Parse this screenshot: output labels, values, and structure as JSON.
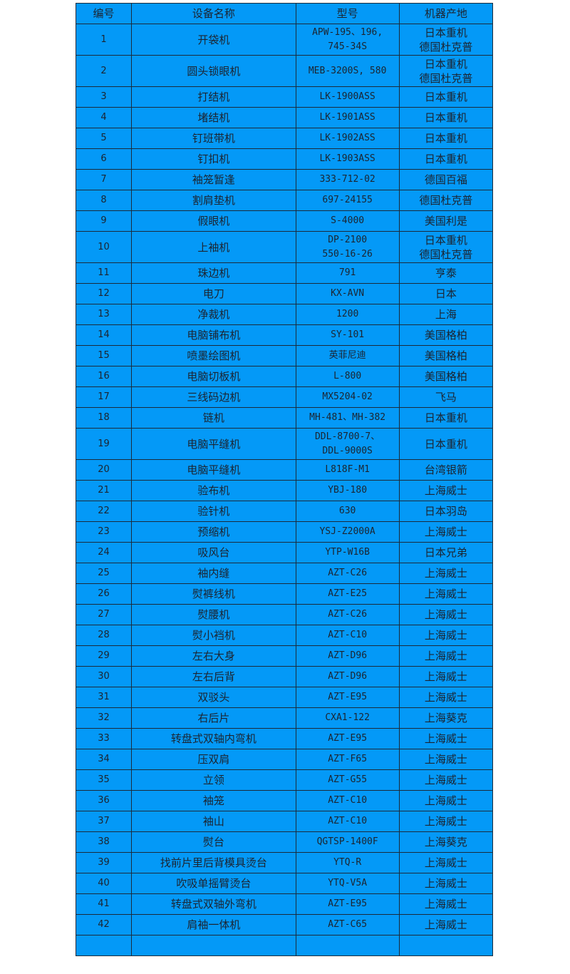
{
  "headers": [
    "编号",
    "设备名称",
    "型号",
    "机器产地"
  ],
  "rows": [
    {
      "no": "1",
      "name": "开袋机",
      "model": "APW-195、196,\n745-34S",
      "origin": "日本重机\n德国杜克普"
    },
    {
      "no": "2",
      "name": "圆头锁眼机",
      "model": "MEB-3200S, 580",
      "origin": "日本重机\n德国杜克普"
    },
    {
      "no": "3",
      "name": "打结机",
      "model": "LK-1900ASS",
      "origin": "日本重机"
    },
    {
      "no": "4",
      "name": "堵结机",
      "model": "LK-1901ASS",
      "origin": "日本重机"
    },
    {
      "no": "5",
      "name": "钉班带机",
      "model": "LK-1902ASS",
      "origin": "日本重机"
    },
    {
      "no": "6",
      "name": "钉扣机",
      "model": "LK-1903ASS",
      "origin": "日本重机"
    },
    {
      "no": "7",
      "name": "袖笼暂逢",
      "model": "333-712-02",
      "origin": "德国百福"
    },
    {
      "no": "8",
      "name": "割肩垫机",
      "model": "697-24155",
      "origin": "德国杜克普"
    },
    {
      "no": "9",
      "name": "假眼机",
      "model": "S-4000",
      "origin": "美国利是"
    },
    {
      "no": "10",
      "name": "上袖机",
      "model": "DP-2100\n550-16-26",
      "origin": "日本重机\n德国杜克普"
    },
    {
      "no": "11",
      "name": "珠边机",
      "model": "791",
      "origin": "亨泰"
    },
    {
      "no": "12",
      "name": "电刀",
      "model": "KX-AVN",
      "origin": "日本"
    },
    {
      "no": "13",
      "name": "净裁机",
      "model": "1200",
      "origin": "上海"
    },
    {
      "no": "14",
      "name": "电脑铺布机",
      "model": "SY-101",
      "origin": "美国格柏"
    },
    {
      "no": "15",
      "name": "喷墨绘图机",
      "model": "英菲尼迪",
      "origin": "美国格柏"
    },
    {
      "no": "16",
      "name": "电脑切板机",
      "model": "L-800",
      "origin": "美国格柏"
    },
    {
      "no": "17",
      "name": "三线码边机",
      "model": "MX5204-02",
      "origin": "飞马"
    },
    {
      "no": "18",
      "name": "链机",
      "model": "MH-481、MH-382",
      "origin": "日本重机"
    },
    {
      "no": "19",
      "name": "电脑平缝机",
      "model": "DDL-8700-7、\nDDL-9000S",
      "origin": "日本重机"
    },
    {
      "no": "20",
      "name": "电脑平缝机",
      "model": "L818F-M1",
      "origin": "台湾银箭"
    },
    {
      "no": "21",
      "name": "验布机",
      "model": "YBJ-180",
      "origin": "上海威士"
    },
    {
      "no": "22",
      "name": "验针机",
      "model": "630",
      "origin": "日本羽岛"
    },
    {
      "no": "23",
      "name": "预缩机",
      "model": "YSJ-Z2000A",
      "origin": "上海威士"
    },
    {
      "no": "24",
      "name": "吸风台",
      "model": "YTP-W16B",
      "origin": "日本兄弟"
    },
    {
      "no": "25",
      "name": "袖内缝",
      "model": "AZT-C26",
      "origin": "上海威士"
    },
    {
      "no": "26",
      "name": "熨裤线机",
      "model": "AZT-E25",
      "origin": "上海威士"
    },
    {
      "no": "27",
      "name": "熨腰机",
      "model": "AZT-C26",
      "origin": "上海威士"
    },
    {
      "no": "28",
      "name": "熨小裆机",
      "model": "AZT-C10",
      "origin": "上海威士"
    },
    {
      "no": "29",
      "name": "左右大身",
      "model": "AZT-D96",
      "origin": "上海威士"
    },
    {
      "no": "30",
      "name": "左右后背",
      "model": "AZT-D96",
      "origin": "上海威士"
    },
    {
      "no": "31",
      "name": "双驳头",
      "model": "AZT-E95",
      "origin": "上海威士"
    },
    {
      "no": "32",
      "name": "右后片",
      "model": "CXA1-122",
      "origin": "上海葵克"
    },
    {
      "no": "33",
      "name": "转盘式双轴内弯机",
      "model": "AZT-E95",
      "origin": "上海威士"
    },
    {
      "no": "34",
      "name": "压双肩",
      "model": "AZT-F65",
      "origin": "上海威士"
    },
    {
      "no": "35",
      "name": "立领",
      "model": "AZT-G55",
      "origin": "上海威士"
    },
    {
      "no": "36",
      "name": "袖笼",
      "model": "AZT-C10",
      "origin": "上海威士"
    },
    {
      "no": "37",
      "name": "袖山",
      "model": "AZT-C10",
      "origin": "上海威士"
    },
    {
      "no": "38",
      "name": "熨台",
      "model": "QGTSP-1400F",
      "origin": "上海葵克"
    },
    {
      "no": "39",
      "name": "找前片里后背模具烫台",
      "model": "YTQ-R",
      "origin": "上海威士"
    },
    {
      "no": "40",
      "name": "吹吸单摇臂烫台",
      "model": "YTQ-V5A",
      "origin": "上海威士"
    },
    {
      "no": "41",
      "name": "转盘式双轴外弯机",
      "model": "AZT-E95",
      "origin": "上海威士"
    },
    {
      "no": "42",
      "name": "肩袖一体机",
      "model": "AZT-C65",
      "origin": "上海威士"
    },
    {
      "no": "",
      "name": "",
      "model": "",
      "origin": ""
    }
  ],
  "colors": {
    "table_bg": "#0499f7",
    "border": "#1b2b3c",
    "text": "#1c2430"
  }
}
